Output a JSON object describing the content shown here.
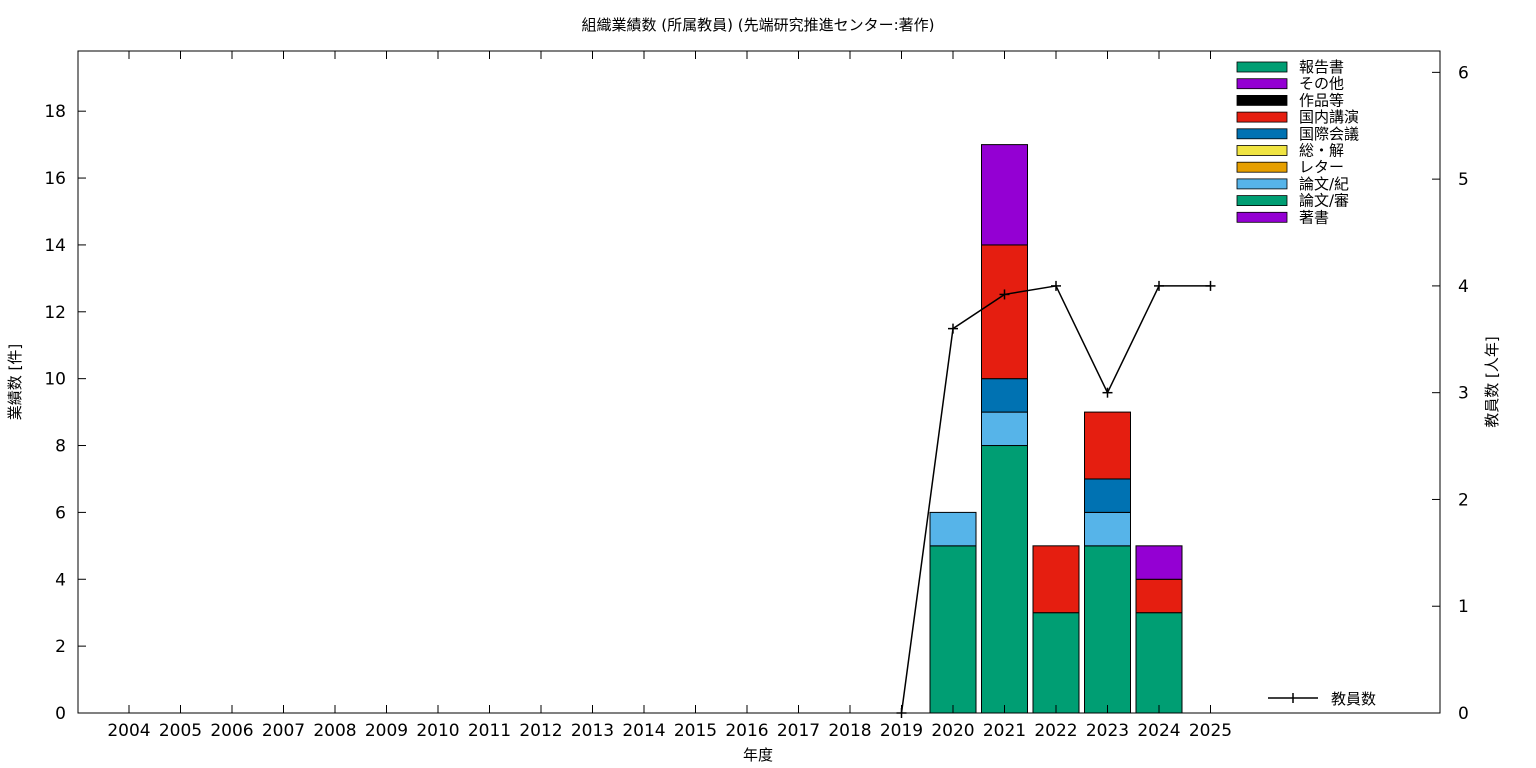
{
  "chart_data": {
    "type": "bar",
    "stacked": true,
    "title": "組織業績数 (所属教員) (先端研究推進センター:著作)",
    "xlabel": "年度",
    "ylabel": "業績数 [件]",
    "y2label": "教員数 [人年]",
    "ylim": [
      0,
      19.8
    ],
    "y2lim": [
      0,
      6.2
    ],
    "yticks": [
      0,
      2,
      4,
      6,
      8,
      10,
      12,
      14,
      16,
      18
    ],
    "y2ticks": [
      0,
      1,
      2,
      3,
      4,
      5,
      6
    ],
    "grid": false,
    "legend_position": "top-right",
    "categories": [
      "2004",
      "2005",
      "2006",
      "2007",
      "2008",
      "2009",
      "2010",
      "2011",
      "2012",
      "2013",
      "2014",
      "2015",
      "2016",
      "2017",
      "2018",
      "2019",
      "2020",
      "2021",
      "2022",
      "2023",
      "2024",
      "2025"
    ],
    "series": [
      {
        "name": "著書",
        "color": "#9400d3",
        "values": [
          0,
          0,
          0,
          0,
          0,
          0,
          0,
          0,
          0,
          0,
          0,
          0,
          0,
          0,
          0,
          0,
          0,
          0,
          0,
          0,
          0,
          0
        ]
      },
      {
        "name": "論文/審",
        "color": "#009e73",
        "values": [
          0,
          0,
          0,
          0,
          0,
          0,
          0,
          0,
          0,
          0,
          0,
          0,
          0,
          0,
          0,
          0,
          5,
          8,
          3,
          5,
          3,
          0
        ]
      },
      {
        "name": "論文/紀",
        "color": "#56b4e9",
        "values": [
          0,
          0,
          0,
          0,
          0,
          0,
          0,
          0,
          0,
          0,
          0,
          0,
          0,
          0,
          0,
          0,
          1,
          1,
          0,
          1,
          0,
          0
        ]
      },
      {
        "name": "レター",
        "color": "#e69f00",
        "values": [
          0,
          0,
          0,
          0,
          0,
          0,
          0,
          0,
          0,
          0,
          0,
          0,
          0,
          0,
          0,
          0,
          0,
          0,
          0,
          0,
          0,
          0
        ]
      },
      {
        "name": "総・解",
        "color": "#f0e442",
        "values": [
          0,
          0,
          0,
          0,
          0,
          0,
          0,
          0,
          0,
          0,
          0,
          0,
          0,
          0,
          0,
          0,
          0,
          0,
          0,
          0,
          0,
          0
        ]
      },
      {
        "name": "国際会議",
        "color": "#0072b2",
        "values": [
          0,
          0,
          0,
          0,
          0,
          0,
          0,
          0,
          0,
          0,
          0,
          0,
          0,
          0,
          0,
          0,
          0,
          1,
          0,
          1,
          0,
          0
        ]
      },
      {
        "name": "国内講演",
        "color": "#e51e10",
        "values": [
          0,
          0,
          0,
          0,
          0,
          0,
          0,
          0,
          0,
          0,
          0,
          0,
          0,
          0,
          0,
          0,
          0,
          4,
          2,
          2,
          1,
          0
        ]
      },
      {
        "name": "作品等",
        "color": "#000000",
        "values": [
          0,
          0,
          0,
          0,
          0,
          0,
          0,
          0,
          0,
          0,
          0,
          0,
          0,
          0,
          0,
          0,
          0,
          0,
          0,
          0,
          0,
          0
        ]
      },
      {
        "name": "その他",
        "color": "#9400d3",
        "values": [
          0,
          0,
          0,
          0,
          0,
          0,
          0,
          0,
          0,
          0,
          0,
          0,
          0,
          0,
          0,
          0,
          0,
          3,
          0,
          0,
          1,
          0
        ]
      },
      {
        "name": "報告書",
        "color": "#009e73",
        "values": [
          0,
          0,
          0,
          0,
          0,
          0,
          0,
          0,
          0,
          0,
          0,
          0,
          0,
          0,
          0,
          0,
          0,
          0,
          0,
          0,
          0,
          0
        ]
      }
    ],
    "legend_order": [
      "報告書",
      "その他",
      "作品等",
      "国内講演",
      "国際会議",
      "総・解",
      "レター",
      "論文/紀",
      "論文/審",
      "著書"
    ],
    "line_series": {
      "name": "教員数",
      "axis": "y2",
      "color": "#000000",
      "x": [
        "2019",
        "2020",
        "2021",
        "2022",
        "2023",
        "2024",
        "2025"
      ],
      "values": [
        0,
        3.6,
        3.92,
        4.0,
        3.0,
        4.0,
        4.0
      ]
    }
  }
}
